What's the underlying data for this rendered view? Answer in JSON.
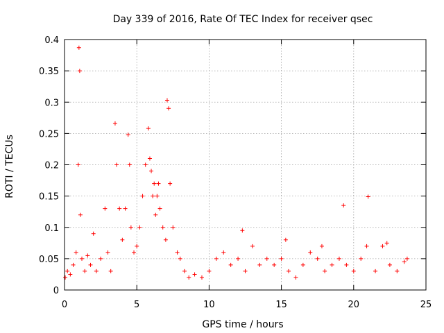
{
  "chart_data": {
    "type": "scatter",
    "title": "Day 339 of 2016, Rate Of TEC Index for receiver qsec",
    "xlabel": "GPS time / hours",
    "ylabel": "ROTI / TECUs",
    "xlim": [
      0,
      25
    ],
    "ylim": [
      0,
      0.4
    ],
    "x_ticks": [
      0,
      5,
      10,
      15,
      20,
      25
    ],
    "y_ticks": [
      0,
      0.05,
      0.1,
      0.15,
      0.2,
      0.25,
      0.3,
      0.35,
      0.4
    ],
    "x_tick_labels": [
      "0",
      "5",
      "10",
      "15",
      "20",
      "25"
    ],
    "y_tick_labels": [
      "0",
      "0.05",
      "0.1",
      "0.15",
      "0.2",
      "0.25",
      "0.3",
      "0.35",
      "0.4"
    ],
    "grid": true,
    "marker": "+",
    "color": "#ff0000",
    "series": [
      {
        "name": "ROTI",
        "x": [
          0.05,
          0.2,
          0.4,
          0.6,
          0.8,
          0.95,
          1.0,
          1.05,
          1.1,
          1.2,
          1.4,
          1.6,
          1.8,
          2.0,
          2.2,
          2.5,
          2.8,
          3.0,
          3.2,
          3.5,
          3.6,
          3.8,
          4.0,
          4.2,
          4.4,
          4.5,
          4.6,
          4.8,
          5.0,
          5.2,
          5.4,
          5.6,
          5.8,
          5.9,
          6.0,
          6.1,
          6.2,
          6.3,
          6.4,
          6.5,
          6.6,
          6.8,
          7.0,
          7.1,
          7.2,
          7.3,
          7.5,
          7.8,
          8.0,
          8.3,
          8.6,
          9.0,
          9.5,
          10.0,
          10.5,
          11.0,
          11.5,
          12.0,
          12.3,
          12.5,
          13.0,
          13.5,
          14.0,
          14.5,
          15.0,
          15.3,
          15.5,
          16.0,
          16.5,
          17.0,
          17.5,
          17.8,
          18.0,
          18.5,
          19.0,
          19.3,
          19.5,
          20.0,
          20.5,
          20.9,
          21.0,
          21.5,
          22.0,
          22.3,
          22.5,
          23.0,
          23.5,
          23.7
        ],
        "y": [
          0.02,
          0.03,
          0.025,
          0.04,
          0.06,
          0.2,
          0.387,
          0.35,
          0.12,
          0.05,
          0.03,
          0.055,
          0.04,
          0.09,
          0.03,
          0.05,
          0.13,
          0.06,
          0.03,
          0.266,
          0.2,
          0.13,
          0.08,
          0.13,
          0.248,
          0.2,
          0.1,
          0.06,
          0.07,
          0.1,
          0.15,
          0.2,
          0.258,
          0.21,
          0.19,
          0.15,
          0.17,
          0.12,
          0.15,
          0.17,
          0.13,
          0.1,
          0.08,
          0.303,
          0.29,
          0.17,
          0.1,
          0.06,
          0.05,
          0.03,
          0.02,
          0.025,
          0.02,
          0.03,
          0.05,
          0.06,
          0.04,
          0.05,
          0.095,
          0.03,
          0.07,
          0.04,
          0.05,
          0.04,
          0.05,
          0.08,
          0.03,
          0.02,
          0.04,
          0.06,
          0.05,
          0.07,
          0.03,
          0.04,
          0.05,
          0.135,
          0.04,
          0.03,
          0.05,
          0.07,
          0.149,
          0.03,
          0.07,
          0.075,
          0.04,
          0.03,
          0.045,
          0.05
        ]
      }
    ]
  }
}
